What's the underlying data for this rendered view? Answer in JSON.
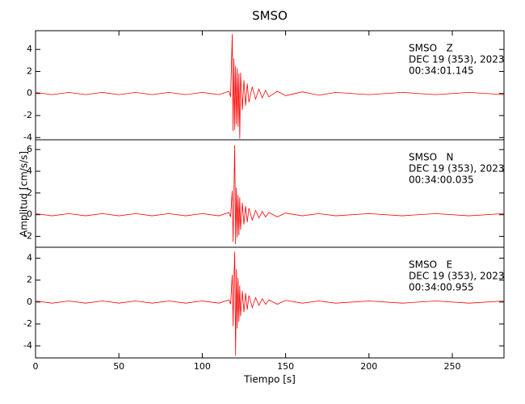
{
  "chart_data": [
    {
      "type": "line",
      "title": "SMSO",
      "annotation": [
        "SMSO   Z",
        "DEC 19 (353), 2023",
        "00:34:01.145"
      ],
      "color": "#ff0000",
      "xlim": [
        0,
        281
      ],
      "ylim": [
        -4.2,
        5.7
      ],
      "yticks": [
        -4,
        -2,
        0,
        2,
        4
      ],
      "x": [
        0,
        10,
        20,
        30,
        40,
        50,
        60,
        70,
        80,
        90,
        100,
        110,
        116,
        117,
        118,
        118.5,
        119,
        119.5,
        120,
        120.5,
        121,
        121.5,
        122,
        122.5,
        123,
        124,
        125,
        126,
        127,
        128,
        130,
        132,
        134,
        136,
        138,
        140,
        145,
        150,
        160,
        170,
        180,
        200,
        220,
        240,
        260,
        281
      ],
      "values": [
        0.1,
        -0.1,
        0.1,
        -0.1,
        0.1,
        -0.1,
        0.1,
        -0.1,
        0.1,
        -0.1,
        0.1,
        -0.1,
        0.2,
        -0.3,
        5.4,
        -3.4,
        3.2,
        -3.3,
        2.5,
        -2.8,
        2.3,
        -3.0,
        1.8,
        -4.1,
        1.9,
        -1.5,
        1.2,
        -1.1,
        0.9,
        -0.8,
        0.6,
        -0.5,
        0.4,
        -0.4,
        0.3,
        -0.3,
        0.2,
        -0.2,
        0.15,
        -0.15,
        0.1,
        -0.1,
        0.1,
        -0.1,
        0.1,
        -0.1
      ]
    },
    {
      "type": "line",
      "ylabel": "Amplitud [cm/s/s]",
      "annotation": [
        "SMSO   N",
        "DEC 19 (353), 2023",
        "00:34:00.035"
      ],
      "color": "#ff0000",
      "xlim": [
        0,
        281
      ],
      "ylim": [
        -3.0,
        6.9
      ],
      "yticks": [
        -2,
        0,
        2,
        4,
        6
      ],
      "x": [
        0,
        10,
        20,
        30,
        40,
        50,
        60,
        70,
        80,
        90,
        100,
        110,
        116,
        117,
        118,
        118.5,
        119,
        119.5,
        120,
        120.5,
        121,
        121.5,
        122,
        122.5,
        123,
        124,
        125,
        126,
        127,
        128,
        130,
        132,
        134,
        136,
        138,
        140,
        145,
        150,
        160,
        170,
        180,
        200,
        220,
        240,
        260,
        281
      ],
      "values": [
        0.1,
        -0.1,
        0.1,
        -0.1,
        0.1,
        -0.1,
        0.1,
        -0.1,
        0.1,
        -0.1,
        0.1,
        -0.1,
        0.2,
        -0.2,
        2.2,
        -2.5,
        1.9,
        6.4,
        -2.7,
        2.5,
        -2.1,
        1.8,
        -1.9,
        1.6,
        -1.4,
        1.1,
        -0.9,
        0.8,
        -0.7,
        0.6,
        -0.5,
        0.4,
        -0.3,
        0.3,
        -0.2,
        0.2,
        -0.2,
        0.15,
        -0.1,
        0.1,
        -0.1,
        0.1,
        -0.1,
        0.1,
        -0.1,
        0.1
      ]
    },
    {
      "type": "line",
      "xlabel": "Tiempo [s]",
      "annotation": [
        "SMSO   E",
        "DEC 19 (353), 2023",
        "00:34:00.955"
      ],
      "color": "#ff0000",
      "xlim": [
        0,
        281
      ],
      "ylim": [
        -5.1,
        5.0
      ],
      "yticks": [
        -4,
        -2,
        0,
        2,
        4
      ],
      "xticks": [
        0,
        50,
        100,
        150,
        200,
        250
      ],
      "x": [
        0,
        10,
        20,
        30,
        40,
        50,
        60,
        70,
        80,
        90,
        100,
        110,
        116,
        117,
        118,
        118.5,
        119,
        119.5,
        120,
        120.5,
        121,
        121.5,
        122,
        122.5,
        123,
        124,
        125,
        126,
        127,
        128,
        130,
        132,
        134,
        136,
        138,
        140,
        145,
        150,
        160,
        170,
        180,
        200,
        220,
        240,
        260,
        281
      ],
      "values": [
        0.1,
        -0.1,
        0.1,
        -0.1,
        0.1,
        -0.1,
        0.1,
        -0.1,
        0.1,
        -0.1,
        0.1,
        -0.1,
        0.2,
        -0.2,
        2.5,
        -2.2,
        2.1,
        4.6,
        -4.9,
        3.0,
        -2.4,
        2.2,
        -1.8,
        1.5,
        -1.3,
        1.0,
        -0.9,
        0.8,
        -0.7,
        0.6,
        -0.5,
        0.4,
        -0.3,
        0.3,
        -0.2,
        0.2,
        -0.2,
        0.15,
        -0.1,
        0.1,
        -0.1,
        0.1,
        -0.1,
        0.1,
        -0.1,
        0.1
      ]
    }
  ]
}
